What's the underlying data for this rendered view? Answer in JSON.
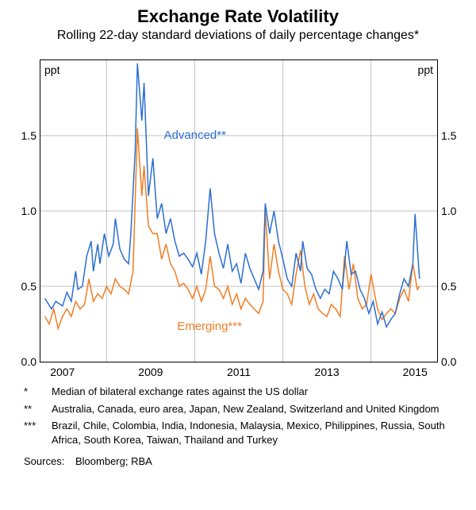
{
  "chart": {
    "type": "line",
    "title": "Exchange Rate Volatility",
    "title_fontsize": 22,
    "subtitle": "Rolling 22-day standard deviations of daily percentage changes*",
    "subtitle_fontsize": 16,
    "y_unit": "ppt",
    "ylim": [
      0.0,
      2.0
    ],
    "yticks": [
      0.0,
      0.5,
      1.0,
      1.5
    ],
    "xlim": [
      2006.5,
      2015.5
    ],
    "xticks": [
      2007,
      2009,
      2011,
      2013,
      2015
    ],
    "x_gridlines_at": [
      2008,
      2010,
      2012,
      2014
    ],
    "background_color": "#ffffff",
    "grid_color": "#c0c0c0",
    "axis_fontsize": 14,
    "series": {
      "advanced": {
        "label": "Advanced**",
        "color": "#2b6fd1",
        "line_width": 1.5,
        "label_x": 2009.3,
        "label_y": 1.55,
        "data": [
          [
            2006.6,
            0.42
          ],
          [
            2006.75,
            0.35
          ],
          [
            2006.85,
            0.4
          ],
          [
            2007.0,
            0.37
          ],
          [
            2007.1,
            0.46
          ],
          [
            2007.2,
            0.4
          ],
          [
            2007.3,
            0.6
          ],
          [
            2007.35,
            0.48
          ],
          [
            2007.45,
            0.5
          ],
          [
            2007.55,
            0.7
          ],
          [
            2007.65,
            0.8
          ],
          [
            2007.7,
            0.6
          ],
          [
            2007.8,
            0.78
          ],
          [
            2007.85,
            0.65
          ],
          [
            2007.95,
            0.85
          ],
          [
            2008.05,
            0.7
          ],
          [
            2008.15,
            0.78
          ],
          [
            2008.2,
            0.95
          ],
          [
            2008.3,
            0.75
          ],
          [
            2008.4,
            0.68
          ],
          [
            2008.5,
            0.65
          ],
          [
            2008.55,
            0.85
          ],
          [
            2008.65,
            1.4
          ],
          [
            2008.7,
            1.98
          ],
          [
            2008.8,
            1.6
          ],
          [
            2008.85,
            1.85
          ],
          [
            2008.95,
            1.1
          ],
          [
            2009.05,
            1.35
          ],
          [
            2009.15,
            0.95
          ],
          [
            2009.25,
            1.05
          ],
          [
            2009.35,
            0.85
          ],
          [
            2009.45,
            0.95
          ],
          [
            2009.55,
            0.8
          ],
          [
            2009.65,
            0.7
          ],
          [
            2009.75,
            0.72
          ],
          [
            2009.85,
            0.68
          ],
          [
            2009.95,
            0.63
          ],
          [
            2010.05,
            0.72
          ],
          [
            2010.15,
            0.58
          ],
          [
            2010.25,
            0.8
          ],
          [
            2010.35,
            1.15
          ],
          [
            2010.45,
            0.85
          ],
          [
            2010.55,
            0.72
          ],
          [
            2010.65,
            0.62
          ],
          [
            2010.75,
            0.78
          ],
          [
            2010.85,
            0.6
          ],
          [
            2010.95,
            0.65
          ],
          [
            2011.05,
            0.52
          ],
          [
            2011.15,
            0.72
          ],
          [
            2011.25,
            0.62
          ],
          [
            2011.35,
            0.55
          ],
          [
            2011.45,
            0.48
          ],
          [
            2011.55,
            0.6
          ],
          [
            2011.6,
            1.05
          ],
          [
            2011.7,
            0.85
          ],
          [
            2011.8,
            1.0
          ],
          [
            2011.9,
            0.8
          ],
          [
            2012.0,
            0.68
          ],
          [
            2012.1,
            0.55
          ],
          [
            2012.2,
            0.5
          ],
          [
            2012.3,
            0.72
          ],
          [
            2012.4,
            0.6
          ],
          [
            2012.45,
            0.8
          ],
          [
            2012.55,
            0.62
          ],
          [
            2012.65,
            0.58
          ],
          [
            2012.75,
            0.48
          ],
          [
            2012.85,
            0.42
          ],
          [
            2012.95,
            0.48
          ],
          [
            2013.05,
            0.45
          ],
          [
            2013.15,
            0.6
          ],
          [
            2013.25,
            0.55
          ],
          [
            2013.35,
            0.48
          ],
          [
            2013.45,
            0.8
          ],
          [
            2013.55,
            0.58
          ],
          [
            2013.65,
            0.6
          ],
          [
            2013.75,
            0.48
          ],
          [
            2013.85,
            0.42
          ],
          [
            2013.95,
            0.32
          ],
          [
            2014.05,
            0.4
          ],
          [
            2014.15,
            0.25
          ],
          [
            2014.25,
            0.33
          ],
          [
            2014.35,
            0.23
          ],
          [
            2014.45,
            0.28
          ],
          [
            2014.55,
            0.32
          ],
          [
            2014.65,
            0.45
          ],
          [
            2014.75,
            0.55
          ],
          [
            2014.85,
            0.5
          ],
          [
            2014.95,
            0.65
          ],
          [
            2015.0,
            0.98
          ],
          [
            2015.1,
            0.55
          ]
        ]
      },
      "emerging": {
        "label": "Emerging***",
        "color": "#f17d23",
        "line_width": 1.5,
        "label_x": 2009.6,
        "label_y": 0.28,
        "data": [
          [
            2006.6,
            0.3
          ],
          [
            2006.7,
            0.25
          ],
          [
            2006.8,
            0.35
          ],
          [
            2006.9,
            0.22
          ],
          [
            2007.0,
            0.3
          ],
          [
            2007.1,
            0.35
          ],
          [
            2007.2,
            0.3
          ],
          [
            2007.3,
            0.4
          ],
          [
            2007.4,
            0.35
          ],
          [
            2007.5,
            0.38
          ],
          [
            2007.6,
            0.55
          ],
          [
            2007.7,
            0.4
          ],
          [
            2007.8,
            0.45
          ],
          [
            2007.9,
            0.42
          ],
          [
            2008.0,
            0.5
          ],
          [
            2008.1,
            0.45
          ],
          [
            2008.2,
            0.55
          ],
          [
            2008.3,
            0.5
          ],
          [
            2008.4,
            0.48
          ],
          [
            2008.5,
            0.45
          ],
          [
            2008.6,
            0.6
          ],
          [
            2008.7,
            1.55
          ],
          [
            2008.8,
            1.1
          ],
          [
            2008.85,
            1.3
          ],
          [
            2008.95,
            0.9
          ],
          [
            2009.05,
            0.85
          ],
          [
            2009.15,
            0.85
          ],
          [
            2009.25,
            0.68
          ],
          [
            2009.35,
            0.78
          ],
          [
            2009.45,
            0.65
          ],
          [
            2009.55,
            0.6
          ],
          [
            2009.65,
            0.5
          ],
          [
            2009.75,
            0.52
          ],
          [
            2009.85,
            0.48
          ],
          [
            2009.95,
            0.42
          ],
          [
            2010.05,
            0.5
          ],
          [
            2010.15,
            0.4
          ],
          [
            2010.25,
            0.48
          ],
          [
            2010.35,
            0.7
          ],
          [
            2010.45,
            0.5
          ],
          [
            2010.55,
            0.48
          ],
          [
            2010.65,
            0.42
          ],
          [
            2010.75,
            0.5
          ],
          [
            2010.85,
            0.38
          ],
          [
            2010.95,
            0.45
          ],
          [
            2011.05,
            0.35
          ],
          [
            2011.15,
            0.42
          ],
          [
            2011.25,
            0.38
          ],
          [
            2011.35,
            0.35
          ],
          [
            2011.45,
            0.32
          ],
          [
            2011.55,
            0.4
          ],
          [
            2011.6,
            1.0
          ],
          [
            2011.7,
            0.55
          ],
          [
            2011.8,
            0.78
          ],
          [
            2011.9,
            0.6
          ],
          [
            2012.0,
            0.48
          ],
          [
            2012.1,
            0.45
          ],
          [
            2012.2,
            0.38
          ],
          [
            2012.3,
            0.58
          ],
          [
            2012.4,
            0.74
          ],
          [
            2012.5,
            0.5
          ],
          [
            2012.6,
            0.38
          ],
          [
            2012.7,
            0.45
          ],
          [
            2012.8,
            0.35
          ],
          [
            2012.9,
            0.32
          ],
          [
            2013.0,
            0.3
          ],
          [
            2013.1,
            0.38
          ],
          [
            2013.2,
            0.35
          ],
          [
            2013.3,
            0.3
          ],
          [
            2013.4,
            0.7
          ],
          [
            2013.5,
            0.48
          ],
          [
            2013.6,
            0.65
          ],
          [
            2013.7,
            0.42
          ],
          [
            2013.8,
            0.35
          ],
          [
            2013.9,
            0.38
          ],
          [
            2014.0,
            0.58
          ],
          [
            2014.1,
            0.42
          ],
          [
            2014.15,
            0.35
          ],
          [
            2014.25,
            0.28
          ],
          [
            2014.35,
            0.32
          ],
          [
            2014.45,
            0.35
          ],
          [
            2014.55,
            0.32
          ],
          [
            2014.65,
            0.42
          ],
          [
            2014.75,
            0.48
          ],
          [
            2014.85,
            0.4
          ],
          [
            2014.95,
            0.65
          ],
          [
            2015.05,
            0.48
          ],
          [
            2015.1,
            0.5
          ]
        ]
      }
    }
  },
  "footnotes": {
    "f1_mark": "*",
    "f1_text": "Median of bilateral exchange rates against the US dollar",
    "f2_mark": "**",
    "f2_text": "Australia, Canada, euro area, Japan, New Zealand, Switzerland and United Kingdom",
    "f3_mark": "***",
    "f3_text": "Brazil, Chile, Colombia, India, Indonesia, Malaysia, Mexico, Philippines, Russia, South Africa, South Korea, Taiwan, Thailand and Turkey",
    "sources_label": "Sources:",
    "sources_text": "Bloomberg; RBA"
  }
}
